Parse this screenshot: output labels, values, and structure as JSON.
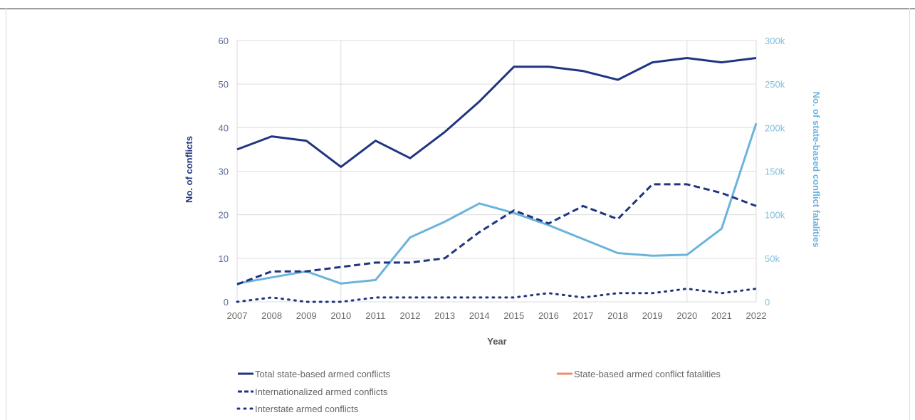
{
  "chart_data": {
    "type": "line",
    "xlabel": "Year",
    "ylabel": "No. of conflicts",
    "y2label": "No. of state-based conflict fatalities",
    "x": [
      "2007",
      "2008",
      "2009",
      "2010",
      "2011",
      "2012",
      "2013",
      "2014",
      "2015",
      "2016",
      "2017",
      "2018",
      "2019",
      "2020",
      "2021",
      "2022"
    ],
    "ylim": [
      0,
      60
    ],
    "y2lim": [
      0,
      300000
    ],
    "yticks": [
      "0",
      "10",
      "20",
      "30",
      "40",
      "50",
      "60"
    ],
    "y2ticks": [
      "0",
      "50k",
      "100k",
      "150k",
      "200k",
      "250k",
      "300k"
    ],
    "grid": true,
    "legend_position": "bottom",
    "series": [
      {
        "name": "Total state-based armed conflicts",
        "axis": "left",
        "style": "solid",
        "color": "#1f3580",
        "values": [
          35,
          38,
          37,
          31,
          37,
          33,
          39,
          46,
          54,
          54,
          53,
          51,
          55,
          56,
          55,
          56
        ]
      },
      {
        "name": "Internationalized armed conflicts",
        "axis": "left",
        "style": "dashed",
        "color": "#1f3580",
        "values": [
          4,
          7,
          7,
          8,
          9,
          9,
          10,
          16,
          21,
          18,
          22,
          19,
          27,
          27,
          25,
          22
        ]
      },
      {
        "name": "Interstate armed conflicts",
        "axis": "left",
        "style": "dotted",
        "color": "#1f3580",
        "values": [
          0,
          1,
          0,
          0,
          1,
          1,
          1,
          1,
          1,
          2,
          1,
          2,
          2,
          3,
          2,
          3
        ]
      },
      {
        "name": "State-based armed conflict fatalities",
        "axis": "right",
        "style": "solid",
        "color": "#6ab4dc",
        "legend_color": "#f08c6e",
        "values": [
          21000,
          28000,
          35000,
          21000,
          25000,
          74000,
          92000,
          113000,
          102000,
          88000,
          72000,
          56000,
          53000,
          54000,
          84000,
          205000
        ]
      }
    ]
  }
}
